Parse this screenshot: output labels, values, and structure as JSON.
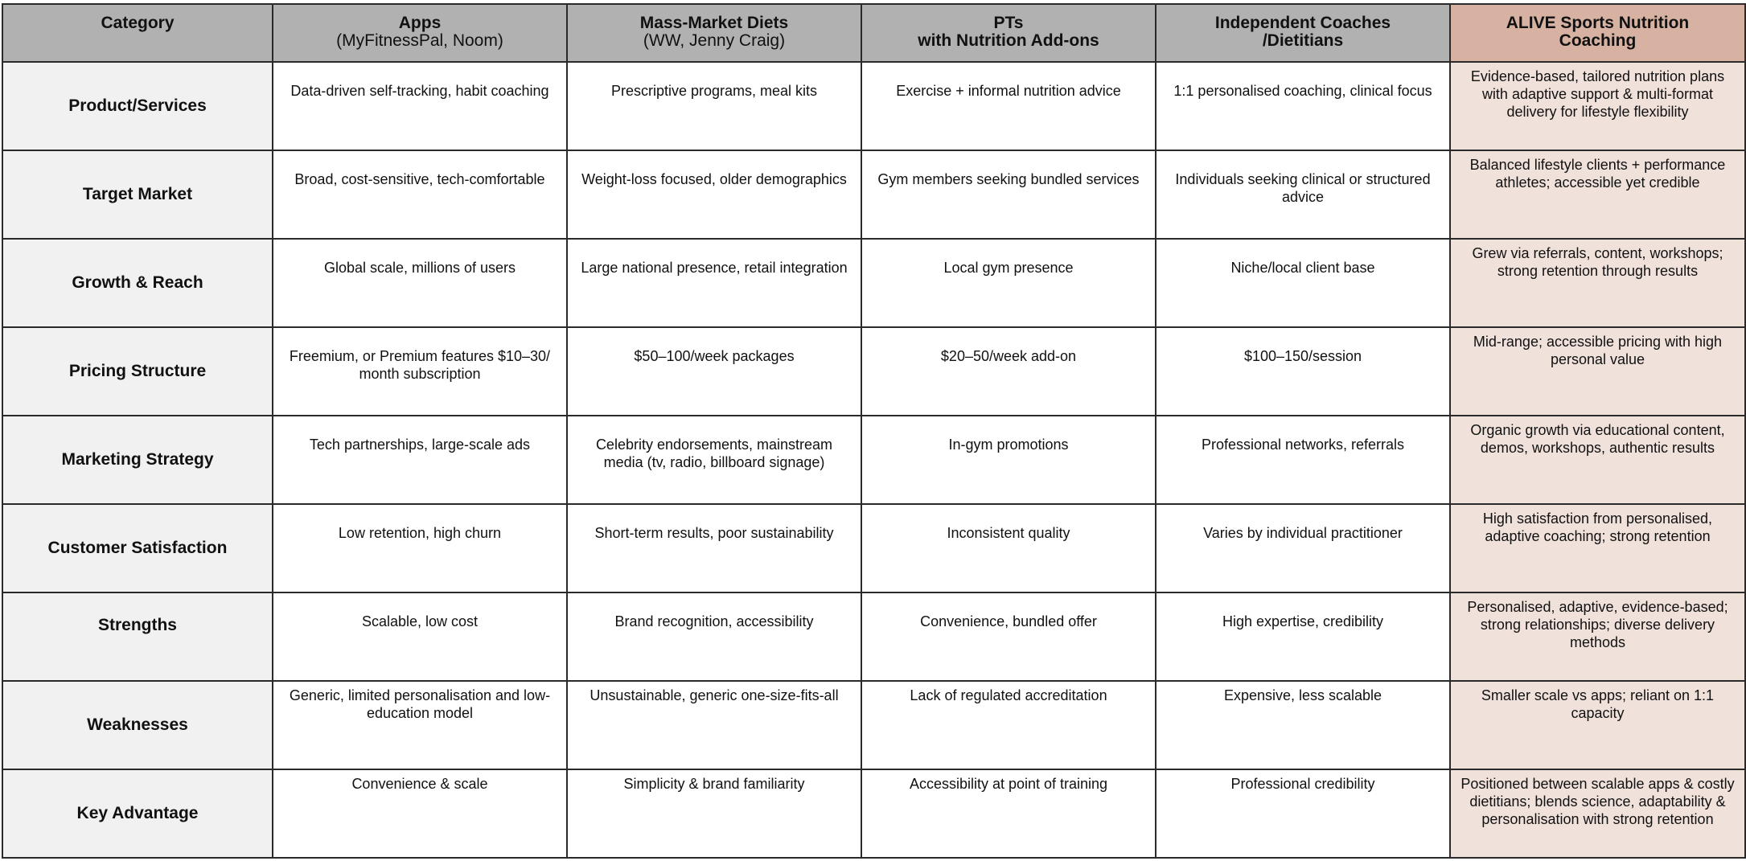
{
  "header": {
    "category": "Category",
    "apps_title": "Apps",
    "apps_sub": "(MyFitnessPal, Noom)",
    "diets_title": "Mass-Market Diets",
    "diets_sub": "(WW, Jenny Craig)",
    "pts_line1": "PTs",
    "pts_line2": "with Nutrition Add-ons",
    "coaches_line1": "Independent Coaches",
    "coaches_line2": "/Dietitians",
    "alive_line1": "ALIVE Sports Nutrition",
    "alive_line2": "Coaching"
  },
  "rows": [
    {
      "label": "Product/Services",
      "apps": "Data-driven self-tracking, habit coaching",
      "diets": "Prescriptive programs, meal kits",
      "pts": "Exercise + informal nutrition advice",
      "coaches": "1:1 personalised coaching, clinical focus",
      "alive": "Evidence-based, tailored nutrition plans with adaptive support & multi-format delivery for lifestyle flexibility"
    },
    {
      "label": "Target Market",
      "apps": "Broad, cost-sensitive, tech-comfortable",
      "diets": "Weight-loss focused, older demographics",
      "pts": "Gym members seeking bundled services",
      "coaches": "Individuals seeking clinical or structured advice",
      "alive": "Balanced lifestyle clients + performance athletes; accessible yet credible"
    },
    {
      "label": "Growth & Reach",
      "apps": "Global scale, millions of users",
      "diets": "Large national presence, retail integration",
      "pts": "Local gym presence",
      "coaches": "Niche/local client base",
      "alive": "Grew via referrals, content, workshops; strong retention through results"
    },
    {
      "label": "Pricing Structure",
      "apps": "Freemium, or Premium features $10–30/ month subscription",
      "diets": "$50–100/week packages",
      "pts": "$20–50/week add-on",
      "coaches": "$100–150/session",
      "alive": "Mid-range; accessible pricing with high personal value"
    },
    {
      "label": "Marketing Strategy",
      "apps": "Tech partnerships, large-scale ads",
      "diets": "Celebrity endorsements, mainstream media (tv, radio, billboard signage)",
      "pts": "In-gym promotions",
      "coaches": "Professional networks, referrals",
      "alive": "Organic growth via educational content, demos, workshops, authentic results"
    },
    {
      "label": "Customer Satisfaction",
      "apps": "Low retention, high churn",
      "diets": "Short-term results, poor sustainability",
      "pts": "Inconsistent quality",
      "coaches": "Varies by individual practitioner",
      "alive": "High satisfaction from personalised, adaptive coaching; strong retention"
    },
    {
      "label": "Strengths",
      "apps": "Scalable, low cost",
      "diets": "Brand recognition, accessibility",
      "pts": "Convenience, bundled offer",
      "coaches": "High expertise, credibility",
      "alive": "Personalised, adaptive, evidence-based; strong relationships; diverse delivery methods"
    },
    {
      "label": "Weaknesses",
      "apps": "Generic, limited personalisation and low-education model",
      "diets": "Unsustainable, generic one-size-fits-all",
      "pts": "Lack of regulated accreditation",
      "coaches": "Expensive, less scalable",
      "alive": "Smaller scale vs apps; reliant on 1:1 capacity"
    },
    {
      "label": "Key Advantage",
      "apps": "Convenience & scale",
      "diets": "Simplicity & brand familiarity",
      "pts": "Accessibility at point of training",
      "coaches": "Professional credibility",
      "alive": "Positioned between scalable apps & costly dietitians; blends science, adaptability & personalisation with strong retention"
    }
  ],
  "colors": {
    "header_bg": "#b1b1b1",
    "alive_header_bg": "#d7b2a2",
    "alive_cell_bg": "#f0e2db",
    "row_label_bg": "#f1f1f1",
    "border": "#2a2a2a"
  }
}
